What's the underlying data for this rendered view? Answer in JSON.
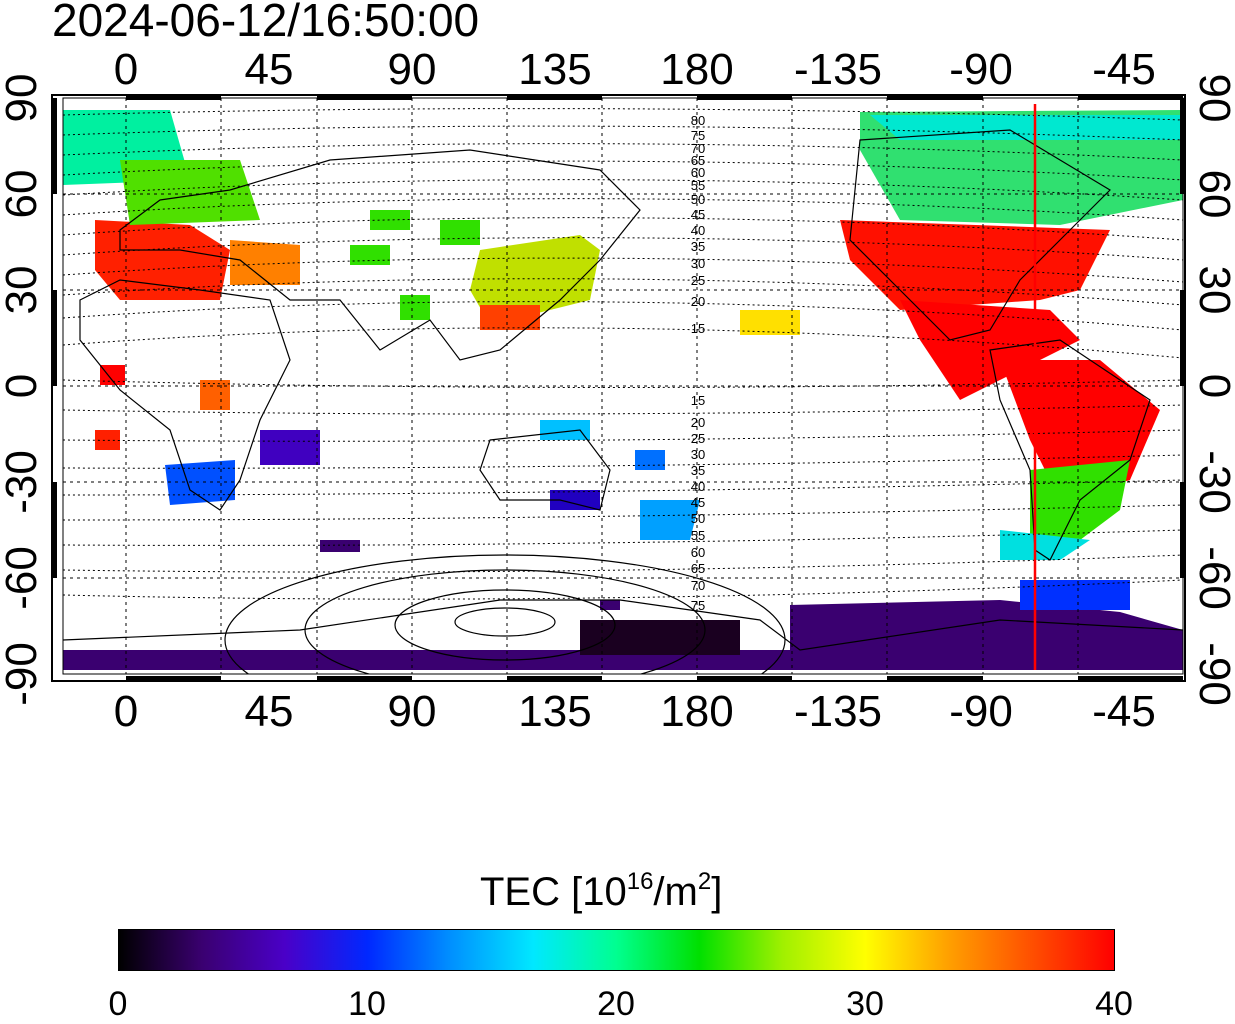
{
  "title": "2024-06-12/16:50:00",
  "map": {
    "x_tick_labels": [
      "0",
      "45",
      "90",
      "135",
      "180",
      "-135",
      "-90",
      "-45"
    ],
    "y_tick_labels": [
      "90",
      "60",
      "30",
      "0",
      "-30",
      "-60",
      "-90"
    ],
    "contour_labels_north": [
      "80",
      "75",
      "70",
      "65",
      "60",
      "55",
      "50",
      "45",
      "40",
      "35",
      "30",
      "25",
      "20",
      "15"
    ],
    "contour_labels_south": [
      "15",
      "20",
      "25",
      "30",
      "35",
      "40",
      "45",
      "50",
      "55",
      "60",
      "65",
      "70",
      "75"
    ],
    "marker_longitude": -70,
    "marker_color": "#ff0000"
  },
  "colorbar": {
    "title_prefix": "TEC  [10",
    "title_exp": "16",
    "title_mid": "/m",
    "title_exp2": "2",
    "title_suffix": "]",
    "min": 0,
    "max": 40,
    "tick_labels": [
      "0",
      "10",
      "20",
      "30",
      "40"
    ],
    "colors": [
      "#000000",
      "#3a0070",
      "#4a00c8",
      "#0028ff",
      "#0090ff",
      "#00e8ff",
      "#00ff90",
      "#00e000",
      "#a0f000",
      "#ffff00",
      "#ffa000",
      "#ff5000",
      "#ff0000"
    ]
  }
}
